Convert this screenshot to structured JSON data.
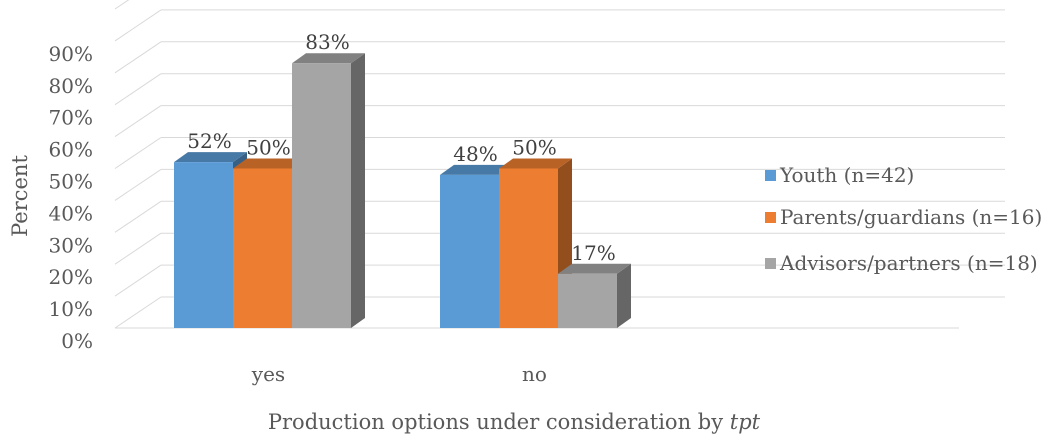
{
  "chart_data": {
    "type": "bar",
    "style": "3d-clustered-column",
    "categories": [
      "yes",
      "no"
    ],
    "series": [
      {
        "name": "Youth (n=42)",
        "values": [
          52,
          48
        ],
        "color": "#5B9BD5",
        "labels": [
          "52%",
          "48%"
        ]
      },
      {
        "name": "Parents/guardians (n=16)",
        "values": [
          50,
          50
        ],
        "color": "#ED7D31",
        "labels": [
          "50%",
          "50%"
        ]
      },
      {
        "name": "Advisors/partners (n=18)",
        "values": [
          83,
          17
        ],
        "color": "#A5A5A5",
        "labels": [
          "83%",
          "17%"
        ]
      }
    ],
    "title": "",
    "ylabel": "Percent",
    "xlabel_prefix": "Production options under consideration by ",
    "xlabel_italic": "tpt",
    "ylim": [
      0,
      100
    ],
    "yticks": [
      0,
      10,
      20,
      30,
      40,
      50,
      60,
      70,
      80,
      90
    ],
    "ytick_labels": [
      "0%",
      "10%",
      "20%",
      "30%",
      "40%",
      "50%",
      "60%",
      "70%",
      "80%",
      "90%"
    ],
    "grid": true,
    "legend": "right"
  }
}
